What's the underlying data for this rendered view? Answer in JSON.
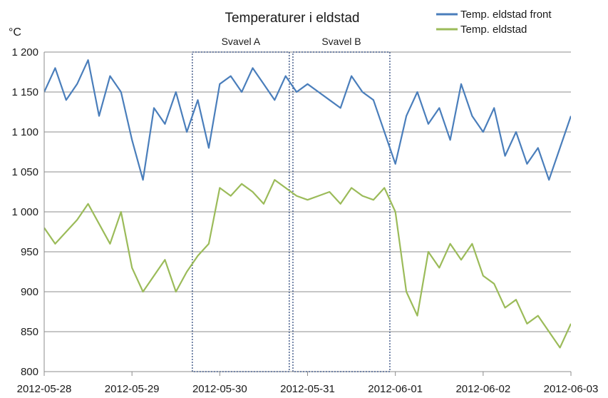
{
  "chart_data": {
    "type": "line",
    "title": "Temperaturer i eldstad",
    "ylabel": "°C",
    "ylim": [
      800,
      1200
    ],
    "yticks": [
      {
        "value": 800,
        "label": "800"
      },
      {
        "value": 850,
        "label": "850"
      },
      {
        "value": 900,
        "label": "900"
      },
      {
        "value": 950,
        "label": "950"
      },
      {
        "value": 1000,
        "label": "1 000"
      },
      {
        "value": 1050,
        "label": "1 050"
      },
      {
        "value": 1100,
        "label": "1 100"
      },
      {
        "value": 1150,
        "label": "1 150"
      },
      {
        "value": 1200,
        "label": "1 200"
      }
    ],
    "xlim": [
      "2012-05-28",
      "2012-06-03"
    ],
    "xticks": [
      "2012-05-28",
      "2012-05-29",
      "2012-05-30",
      "2012-05-31",
      "2012-06-01",
      "2012-06-02",
      "2012-06-03"
    ],
    "grid": "horizontal",
    "legend_position": "top-right",
    "series": [
      {
        "name": "Temp. eldstad front",
        "color": "#4a7ebb",
        "x": [
          "2012-05-28 00:00",
          "2012-05-28 03:00",
          "2012-05-28 06:00",
          "2012-05-28 09:00",
          "2012-05-28 12:00",
          "2012-05-28 15:00",
          "2012-05-28 18:00",
          "2012-05-28 21:00",
          "2012-05-29 00:00",
          "2012-05-29 03:00",
          "2012-05-29 06:00",
          "2012-05-29 09:00",
          "2012-05-29 12:00",
          "2012-05-29 15:00",
          "2012-05-29 18:00",
          "2012-05-29 21:00",
          "2012-05-30 00:00",
          "2012-05-30 03:00",
          "2012-05-30 06:00",
          "2012-05-30 09:00",
          "2012-05-30 12:00",
          "2012-05-30 15:00",
          "2012-05-30 18:00",
          "2012-05-30 21:00",
          "2012-05-31 00:00",
          "2012-05-31 03:00",
          "2012-05-31 06:00",
          "2012-05-31 09:00",
          "2012-05-31 12:00",
          "2012-05-31 15:00",
          "2012-05-31 18:00",
          "2012-05-31 21:00",
          "2012-06-01 00:00",
          "2012-06-01 03:00",
          "2012-06-01 06:00",
          "2012-06-01 09:00",
          "2012-06-01 12:00",
          "2012-06-01 15:00",
          "2012-06-01 18:00",
          "2012-06-01 21:00",
          "2012-06-02 00:00",
          "2012-06-02 03:00",
          "2012-06-02 06:00",
          "2012-06-02 09:00",
          "2012-06-02 12:00",
          "2012-06-02 15:00",
          "2012-06-02 18:00",
          "2012-06-02 21:00",
          "2012-06-03 00:00"
        ],
        "y": [
          1150,
          1180,
          1140,
          1160,
          1190,
          1120,
          1170,
          1150,
          1090,
          1040,
          1130,
          1110,
          1150,
          1100,
          1140,
          1080,
          1160,
          1170,
          1150,
          1180,
          1160,
          1140,
          1170,
          1150,
          1160,
          1150,
          1140,
          1130,
          1170,
          1150,
          1140,
          1100,
          1060,
          1120,
          1150,
          1110,
          1130,
          1090,
          1160,
          1120,
          1100,
          1130,
          1070,
          1100,
          1060,
          1080,
          1040,
          1080,
          1120
        ]
      },
      {
        "name": "Temp. eldstad",
        "color": "#9bbb59",
        "x": [
          "2012-05-28 00:00",
          "2012-05-28 03:00",
          "2012-05-28 06:00",
          "2012-05-28 09:00",
          "2012-05-28 12:00",
          "2012-05-28 15:00",
          "2012-05-28 18:00",
          "2012-05-28 21:00",
          "2012-05-29 00:00",
          "2012-05-29 03:00",
          "2012-05-29 06:00",
          "2012-05-29 09:00",
          "2012-05-29 12:00",
          "2012-05-29 15:00",
          "2012-05-29 18:00",
          "2012-05-29 21:00",
          "2012-05-30 00:00",
          "2012-05-30 03:00",
          "2012-05-30 06:00",
          "2012-05-30 09:00",
          "2012-05-30 12:00",
          "2012-05-30 15:00",
          "2012-05-30 18:00",
          "2012-05-30 21:00",
          "2012-05-31 00:00",
          "2012-05-31 03:00",
          "2012-05-31 06:00",
          "2012-05-31 09:00",
          "2012-05-31 12:00",
          "2012-05-31 15:00",
          "2012-05-31 18:00",
          "2012-05-31 21:00",
          "2012-06-01 00:00",
          "2012-06-01 03:00",
          "2012-06-01 06:00",
          "2012-06-01 09:00",
          "2012-06-01 12:00",
          "2012-06-01 15:00",
          "2012-06-01 18:00",
          "2012-06-01 21:00",
          "2012-06-02 00:00",
          "2012-06-02 03:00",
          "2012-06-02 06:00",
          "2012-06-02 09:00",
          "2012-06-02 12:00",
          "2012-06-02 15:00",
          "2012-06-02 18:00",
          "2012-06-02 21:00",
          "2012-06-03 00:00"
        ],
        "y": [
          980,
          960,
          975,
          990,
          1010,
          985,
          960,
          1000,
          930,
          900,
          920,
          940,
          900,
          925,
          945,
          960,
          1030,
          1020,
          1035,
          1025,
          1010,
          1040,
          1030,
          1020,
          1015,
          1020,
          1025,
          1010,
          1030,
          1020,
          1015,
          1030,
          1000,
          900,
          870,
          950,
          930,
          960,
          940,
          960,
          920,
          910,
          880,
          890,
          860,
          870,
          850,
          830,
          860
        ]
      }
    ],
    "annotations": [
      {
        "label": "Svavel A",
        "x_start": "2012-05-29 16:30",
        "x_end": "2012-05-30 19:00",
        "y_bottom": 800,
        "y_top": 1200
      },
      {
        "label": "Svavel B",
        "x_start": "2012-05-30 20:00",
        "x_end": "2012-05-31 22:30",
        "y_bottom": 800,
        "y_top": 1200
      }
    ]
  }
}
